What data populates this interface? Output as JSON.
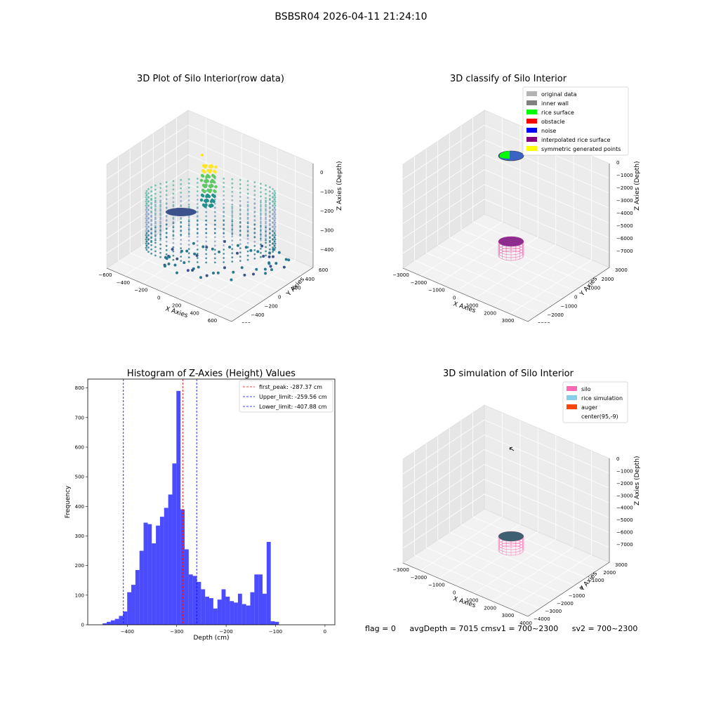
{
  "figure": {
    "suptitle": "BSBSR04 2026-04-11 21:24:10",
    "footer": {
      "flag": "flag = 0",
      "avg_depth": "avgDepth = 7015 cm",
      "sv1": "sv1 = 700~2300",
      "sv2": "sv2 = 700~2300"
    }
  },
  "chart_data": [
    {
      "type": "scatter",
      "projection": "3d",
      "title": "3D Plot of Silo Interior(row data)",
      "xlabel": "X Axies",
      "ylabel": "Y Axies",
      "zlabel": "Z Axies (Depth)",
      "xticks": [
        "−600",
        "−400",
        "−200",
        "0",
        "200",
        "400",
        "600",
        "800"
      ],
      "yticks": [
        "600",
        "400",
        "200",
        "0",
        "−200",
        "−400",
        "−600"
      ],
      "zticks": [
        "0",
        "−100",
        "−200",
        "−300",
        "−400"
      ],
      "xlim": [
        -600,
        800
      ],
      "ylim": [
        -600,
        600
      ],
      "zlim": [
        -450,
        0
      ],
      "colormap": "viridis",
      "description_values": {
        "silo_radius_cm": 400,
        "center": [
          95,
          -9
        ],
        "depth_range": [
          -450,
          -30
        ]
      }
    },
    {
      "type": "scatter",
      "projection": "3d",
      "title": "3D classify of Silo Interior",
      "xlabel": "X Axies",
      "ylabel": "Y Axies",
      "zlabel": "Z Axies (Depth)",
      "xticks": [
        "−3000",
        "−2000",
        "−1000",
        "0",
        "1000",
        "2000",
        "3000",
        "4000"
      ],
      "yticks": [
        "3000",
        "2000",
        "1000",
        "0",
        "−1000",
        "−2000",
        "−3000"
      ],
      "zticks": [
        "0",
        "−1000",
        "−2000",
        "−3000",
        "−4000",
        "−5000",
        "−6000",
        "−7000"
      ],
      "legend_position": "top-right",
      "legend": [
        {
          "label": "original data",
          "color": "#b3b3b3"
        },
        {
          "label": "inner wall",
          "color": "#808080"
        },
        {
          "label": "rice surface",
          "color": "#00ff00"
        },
        {
          "label": "obstacle",
          "color": "#ff0000"
        },
        {
          "label": "noise",
          "color": "#0000ff"
        },
        {
          "label": "interpolated rice surface",
          "color": "#800080"
        },
        {
          "label": "symmetric generated points",
          "color": "#ffff00"
        }
      ]
    },
    {
      "type": "bar",
      "title": "Histogram of Z-Axies (Height) Values",
      "xlabel": "Depth (cm)",
      "ylabel": "Frequency",
      "xlim": [
        -480,
        20
      ],
      "ylim": [
        0,
        830
      ],
      "xticks": [
        "−400",
        "−300",
        "−200",
        "−100",
        "0"
      ],
      "xtick_values": [
        -400,
        -300,
        -200,
        -100,
        0
      ],
      "yticks": [
        "0",
        "100",
        "200",
        "300",
        "400",
        "500",
        "600",
        "700",
        "800"
      ],
      "ytick_values": [
        0,
        100,
        200,
        300,
        400,
        500,
        600,
        700,
        800
      ],
      "bar_color": "#0000ff",
      "bin_start": -450,
      "bin_width": 8.3,
      "values": [
        5,
        10,
        15,
        20,
        30,
        45,
        110,
        135,
        185,
        250,
        345,
        340,
        275,
        335,
        365,
        395,
        440,
        545,
        790,
        390,
        255,
        170,
        165,
        145,
        120,
        95,
        90,
        55,
        85,
        120,
        95,
        80,
        75,
        105,
        70,
        65,
        110,
        170,
        170,
        105,
        280,
        12,
        10
      ],
      "vlines": [
        {
          "label": "first_peak: -287.37 cm",
          "x": -287.37,
          "color": "#ff0000"
        },
        {
          "label": "Upper_limit: -259.56 cm",
          "x": -259.56,
          "color": "#0000ff"
        },
        {
          "label": "Lower_limit: -407.88 cm",
          "x": -407.88,
          "color": "#0000ff"
        }
      ],
      "legend_position": "top-right"
    },
    {
      "type": "scatter",
      "projection": "3d",
      "title": "3D simulation of Silo Interior",
      "xlabel": "X Axies",
      "ylabel": "Y Axies",
      "zlabel": "Z Axies (Depth)",
      "xticks": [
        "−3000",
        "−2000",
        "−1000",
        "0",
        "1000",
        "2000",
        "3000",
        "4000"
      ],
      "yticks": [
        "3000",
        "2000",
        "1000",
        "0",
        "−1000",
        "−2000",
        "−3000",
        "−4000"
      ],
      "zticks": [
        "0",
        "−1000",
        "−2000",
        "−3000",
        "−4000",
        "−5000",
        "−6000",
        "−7000"
      ],
      "legend_position": "top-right",
      "legend": [
        {
          "label": "silo",
          "color": "#ff69b4"
        },
        {
          "label": "rice simulation",
          "color": "#87ceeb"
        },
        {
          "label": "auger",
          "color": "#ff4500"
        },
        {
          "label": "center(95,-9)",
          "color": ""
        }
      ]
    }
  ]
}
